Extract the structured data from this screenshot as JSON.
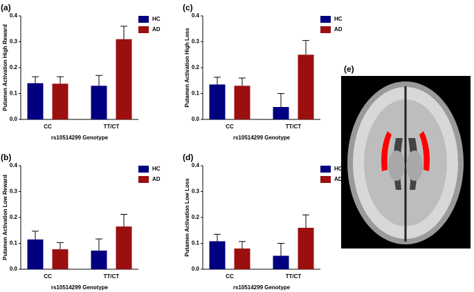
{
  "chart_data": [
    {
      "type": "bar",
      "panel_label": "(a)",
      "y_label": "Putamen  Activation High  Reward",
      "x_label": "rs10514299 Genotype",
      "categories": [
        "CC",
        "TT/CT"
      ],
      "series": [
        {
          "name": "HC",
          "color": "#000080",
          "values": [
            0.14,
            0.13
          ],
          "errors": [
            0.025,
            0.04
          ]
        },
        {
          "name": "AD",
          "color": "#9b0f0f",
          "values": [
            0.138,
            0.31
          ],
          "errors": [
            0.027,
            0.05
          ]
        }
      ],
      "ylim": [
        0,
        0.4
      ],
      "yticks": [
        {
          "value": 0,
          "label": "0.0"
        },
        0.1,
        0.2,
        0.3,
        0.4
      ]
    },
    {
      "type": "bar",
      "panel_label": "(b)",
      "y_label": "Putamen  Activation Low Reward",
      "x_label": "rs10514299 Genotype",
      "categories": [
        "CC",
        "TT/CT"
      ],
      "series": [
        {
          "name": "HC",
          "color": "#000080",
          "values": [
            0.115,
            0.072
          ],
          "errors": [
            0.032,
            0.045
          ]
        },
        {
          "name": "AD",
          "color": "#9b0f0f",
          "values": [
            0.077,
            0.165
          ],
          "errors": [
            0.026,
            0.047
          ]
        }
      ],
      "ylim": [
        0,
        0.4
      ],
      "yticks": [
        {
          "value": 0,
          "label": "0.0"
        },
        0.1,
        0.2,
        0.3,
        0.4
      ]
    },
    {
      "type": "bar",
      "panel_label": "(c)",
      "y_label": "Putamen  Activation High Loss",
      "x_label": "rs10514299 Genotype",
      "categories": [
        "CC",
        "TT/CT"
      ],
      "series": [
        {
          "name": "HC",
          "color": "#000080",
          "values": [
            0.135,
            0.048
          ],
          "errors": [
            0.028,
            0.052
          ]
        },
        {
          "name": "AD",
          "color": "#9b0f0f",
          "values": [
            0.13,
            0.25
          ],
          "errors": [
            0.03,
            0.055
          ]
        }
      ],
      "ylim": [
        0,
        0.4
      ],
      "yticks": [
        {
          "value": 0,
          "label": "0.0"
        },
        0.1,
        0.2,
        0.3,
        0.4
      ]
    },
    {
      "type": "bar",
      "panel_label": "(d)",
      "y_label": "Putamen  Activation Low Loss",
      "x_label": "rs10514299 Genotype",
      "categories": [
        "CC",
        "TT/CT"
      ],
      "series": [
        {
          "name": "HC",
          "color": "#000080",
          "values": [
            0.108,
            0.052
          ],
          "errors": [
            0.027,
            0.048
          ]
        },
        {
          "name": "AD",
          "color": "#9b0f0f",
          "values": [
            0.08,
            0.16
          ],
          "errors": [
            0.027,
            0.05
          ]
        }
      ],
      "ylim": [
        0,
        0.4
      ],
      "yticks": [
        {
          "value": 0,
          "label": "0.0"
        },
        0.1,
        0.2,
        0.3,
        0.4
      ]
    }
  ],
  "image_panel": {
    "label": "(e)"
  }
}
